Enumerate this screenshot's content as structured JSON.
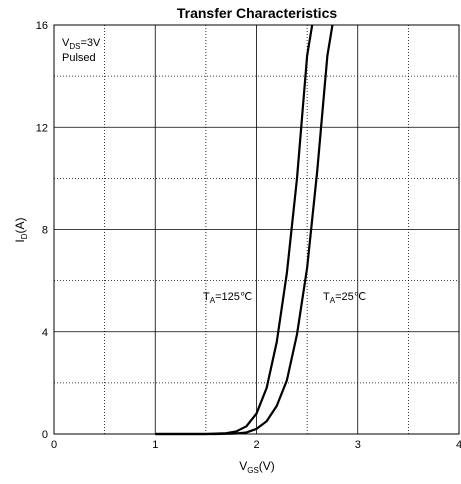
{
  "chart_data": {
    "type": "line",
    "title": "Transfer Characteristics",
    "xlabel": {
      "main": "V",
      "sub": "GS",
      "unit": "(V)"
    },
    "ylabel": {
      "main": "I",
      "sub": "D",
      "unit": "(A)"
    },
    "xlim": [
      0,
      4
    ],
    "ylim": [
      0,
      16
    ],
    "x_ticks": [
      0,
      1,
      2,
      3,
      4
    ],
    "y_ticks": [
      0,
      4,
      8,
      12,
      16
    ],
    "x_tick_labels": [
      "0",
      "1",
      "2",
      "3",
      "4"
    ],
    "y_tick_labels": [
      "0",
      "4",
      "8",
      "12",
      "16"
    ],
    "grid": {
      "major_solid": true,
      "minor_dotted": true,
      "x_minor": [
        0.5,
        1.5,
        2.5,
        3.5
      ],
      "y_minor": [
        2,
        6,
        10,
        14
      ]
    },
    "conditions": {
      "line1": {
        "main": "V",
        "sub": "DS",
        "rest": "=3V"
      },
      "line2": "Pulsed"
    },
    "series": [
      {
        "label": {
          "main": "T",
          "sub": "A",
          "rest": "=125℃"
        },
        "x": [
          1.0,
          1.5,
          1.7,
          1.8,
          1.9,
          2.0,
          2.1,
          2.2,
          2.3,
          2.4,
          2.5,
          2.55
        ],
        "y": [
          0.0,
          0.0,
          0.03,
          0.1,
          0.3,
          0.8,
          1.8,
          3.6,
          6.3,
          10.0,
          14.8,
          16.0
        ]
      },
      {
        "label": {
          "main": "T",
          "sub": "A",
          "rest": "=25℃"
        },
        "x": [
          1.0,
          1.6,
          1.8,
          1.9,
          2.0,
          2.1,
          2.2,
          2.3,
          2.4,
          2.5,
          2.6,
          2.7,
          2.75
        ],
        "y": [
          0.0,
          0.0,
          0.02,
          0.06,
          0.2,
          0.5,
          1.1,
          2.1,
          3.9,
          6.5,
          10.3,
          14.8,
          16.0
        ]
      }
    ]
  }
}
